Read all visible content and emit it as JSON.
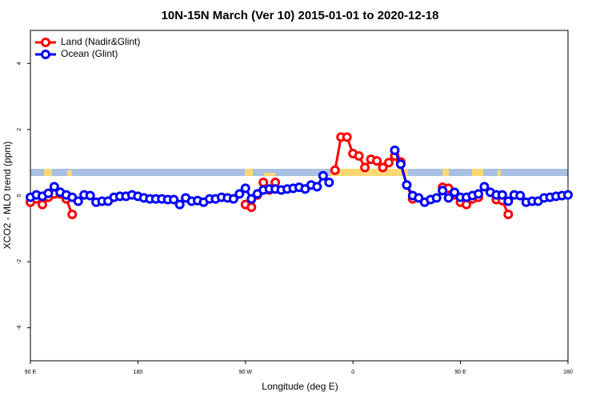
{
  "chart_data": {
    "type": "line",
    "title": "10N-15N March (Ver 10)   2015-01-01 to 2020-12-18",
    "x_label": "Longitude (deg E)",
    "y_label": "XCO2 - MLO trend (ppm)",
    "x": [
      90,
      95,
      100,
      105,
      110,
      115,
      120,
      125,
      130,
      135,
      140,
      145,
      150,
      155,
      160,
      165,
      170,
      175,
      180,
      185,
      190,
      195,
      200,
      205,
      210,
      215,
      220,
      225,
      230,
      235,
      240,
      245,
      250,
      255,
      260,
      265,
      270,
      275,
      280,
      285,
      290,
      295,
      300,
      305,
      310,
      315,
      320,
      325,
      330,
      335,
      340,
      345,
      350,
      355,
      360,
      365,
      370,
      375,
      380,
      385,
      390,
      395,
      400,
      405,
      410,
      415,
      420,
      425,
      430,
      435,
      440,
      445,
      450,
      455,
      460,
      465,
      470,
      475,
      480,
      485,
      490,
      495,
      500,
      505,
      510,
      515,
      520,
      525,
      530,
      535,
      540
    ],
    "series": [
      {
        "name": "Land (Nadir&Glint)",
        "color": "#ff0000",
        "values": [
          -0.2,
          -0.1,
          -0.27,
          -0.05,
          0.05,
          0.05,
          -0.1,
          -0.57,
          null,
          null,
          null,
          null,
          null,
          null,
          null,
          null,
          null,
          null,
          null,
          null,
          null,
          null,
          null,
          null,
          null,
          null,
          null,
          null,
          null,
          null,
          null,
          null,
          null,
          null,
          null,
          null,
          -0.27,
          -0.35,
          0.02,
          0.4,
          0.17,
          0.4,
          null,
          null,
          null,
          null,
          null,
          null,
          null,
          null,
          null,
          0.77,
          1.77,
          1.77,
          1.27,
          1.2,
          0.85,
          1.1,
          1.05,
          0.85,
          1.0,
          1.2,
          1.02,
          0.32,
          -0.1,
          null,
          null,
          null,
          null,
          0.25,
          0.22,
          0.02,
          -0.2,
          -0.27,
          -0.1,
          -0.05,
          null,
          null,
          -0.12,
          -0.15,
          -0.57,
          null,
          null,
          null,
          null,
          null,
          null,
          null,
          null,
          null,
          null
        ]
      },
      {
        "name": "Ocean (Glint)",
        "color": "#0000ff",
        "values": [
          -0.05,
          0.02,
          -0.02,
          0.07,
          0.27,
          0.1,
          0.02,
          -0.05,
          -0.17,
          0.02,
          0,
          -0.2,
          -0.17,
          -0.17,
          -0.05,
          -0.02,
          -0.02,
          0.02,
          -0.02,
          -0.07,
          -0.1,
          -0.1,
          -0.1,
          -0.12,
          -0.12,
          -0.27,
          -0.07,
          -0.17,
          -0.15,
          -0.2,
          -0.1,
          -0.1,
          -0.05,
          -0.07,
          -0.1,
          0.05,
          0.22,
          -0.1,
          0.05,
          0.17,
          0.2,
          0.2,
          0.17,
          0.2,
          0.22,
          0.25,
          0.2,
          0.32,
          0.27,
          0.6,
          0.4,
          null,
          null,
          null,
          null,
          null,
          null,
          null,
          null,
          null,
          null,
          1.37,
          0.95,
          0.32,
          0,
          -0.07,
          -0.2,
          -0.12,
          -0.07,
          0.15,
          -0.07,
          0.1,
          -0.05,
          -0.05,
          0,
          0.05,
          0.27,
          0.1,
          0.02,
          0.02,
          -0.17,
          0.02,
          0,
          -0.2,
          -0.17,
          -0.17,
          -0.07,
          -0.05,
          -0.02,
          0,
          0.02
        ]
      }
    ],
    "xlim": [
      90,
      540
    ],
    "xticks": [
      {
        "value": 90,
        "label": "90 E"
      },
      180,
      {
        "value": 270,
        "label": "90 W"
      },
      {
        "value": 360,
        "label": "0"
      },
      {
        "value": 450,
        "label": "90 E"
      },
      {
        "value": 540,
        "label": "180"
      }
    ],
    "ylim": [
      -5,
      5
    ],
    "yticks": [
      -4,
      -2,
      0,
      2,
      4
    ],
    "legend": "top-left"
  }
}
